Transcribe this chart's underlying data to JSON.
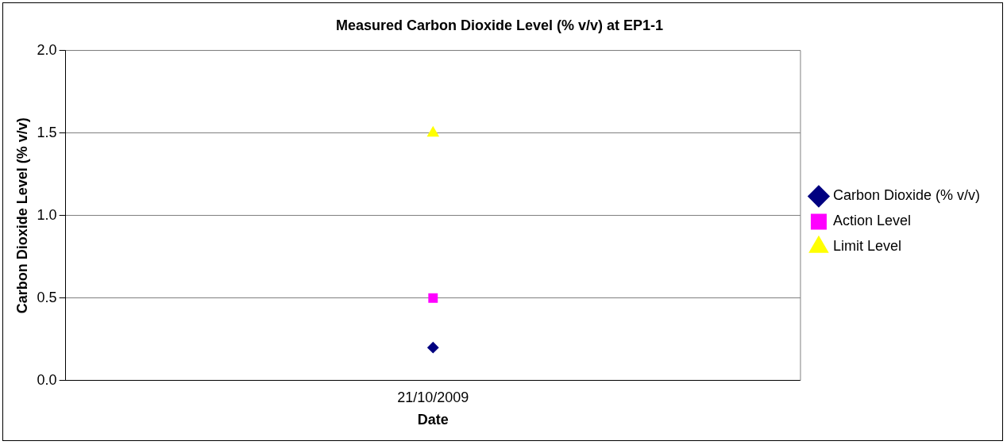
{
  "chart_data": {
    "type": "line",
    "title": "Measured Carbon Dioxide Level (% v/v) at EP1-1",
    "xlabel": "Date",
    "ylabel": "Carbon Dioxide Level (% v/v)",
    "categories": [
      "21/10/2009"
    ],
    "series": [
      {
        "name": "Carbon Dioxide (% v/v)",
        "color": "#000080",
        "values": [
          0.2
        ],
        "marker": "diamond"
      },
      {
        "name": "Action Level",
        "color": "#ff00ff",
        "values": [
          0.5
        ],
        "marker": "square"
      },
      {
        "name": "Limit Level",
        "color": "#ffff00",
        "values": [
          1.5
        ],
        "marker": "triangle"
      }
    ],
    "ylim": [
      0,
      2
    ],
    "yticks": [
      {
        "value": 0,
        "label": "0.0"
      },
      {
        "value": 0.5,
        "label": "0.5"
      },
      {
        "value": 1,
        "label": "1.0"
      },
      {
        "value": 1.5,
        "label": "1.5"
      },
      {
        "value": 2,
        "label": "2.0"
      }
    ],
    "grid": "y",
    "legend": "right"
  }
}
